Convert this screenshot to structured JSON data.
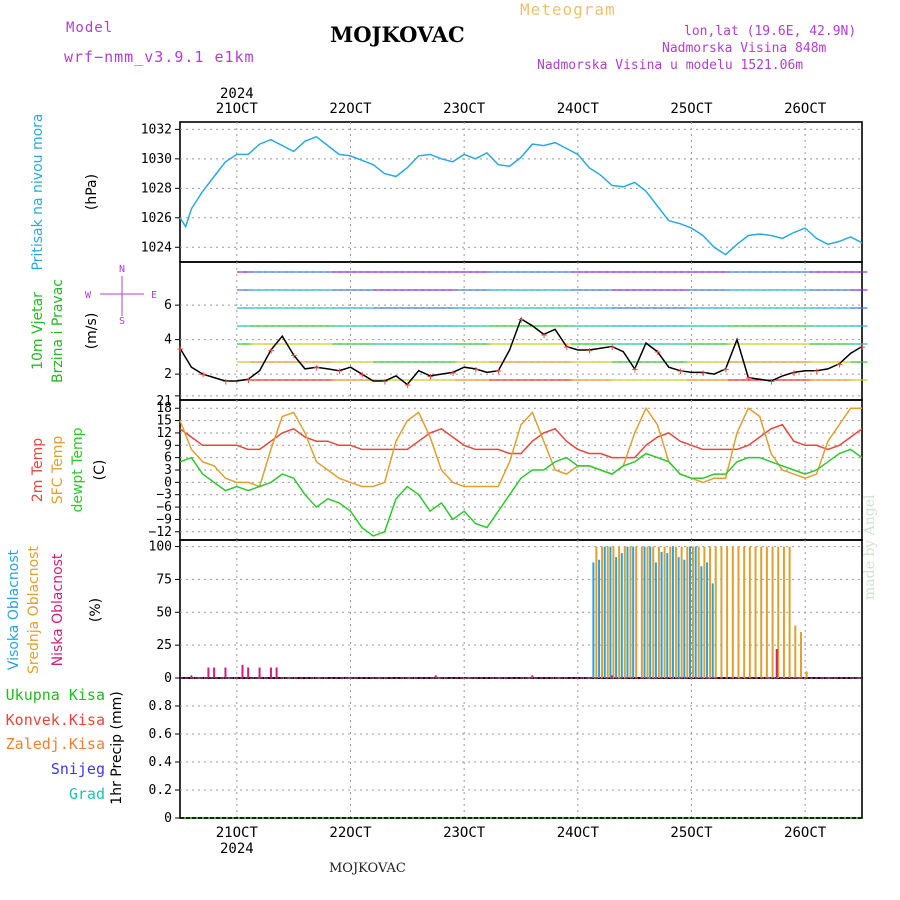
{
  "header": {
    "station": "MOJKOVAC",
    "product": "Meteogram",
    "model_label": "Model",
    "model_name": "wrf−nmm_v3.9.1  e1km",
    "lonlat": "lon,lat (19.6E, 42.9N)",
    "altitude": "Nadmorska Visina 848m",
    "model_altitude": "Nadmorska Visina u modelu 1521.06m"
  },
  "footer": {
    "station": "MOJKOVAC",
    "credit": "made by Angel"
  },
  "colors": {
    "pressure": "#29aae1",
    "temp2m": "#e8463c",
    "sfc": "#e0a030",
    "dewpt": "#2ec82e",
    "high_cloud": "#29a3e0",
    "mid_cloud": "#e0a030",
    "low_cloud": "#cc1f7a",
    "label_pressure": "#29aae1",
    "label_wind": "#22bb22",
    "label_total": "#22bb22",
    "label_conv": "#e8463c",
    "label_frozen": "#f08030",
    "label_snow": "#3a3ae0",
    "label_grad": "#22c0b0",
    "model_text": "#b040d0"
  },
  "dates": {
    "year_top": "2024",
    "year_bottom": "2024",
    "top": [
      "21OCT",
      "22OCT",
      "23OCT",
      "24OCT",
      "25OCT",
      "26OCT"
    ],
    "bottom": [
      "21OCT",
      "22OCT",
      "23OCT",
      "24OCT",
      "25OCT",
      "26OCT"
    ]
  },
  "panel_labels": {
    "pressure": [
      "Pritisak na nivou mora",
      "(hPa)"
    ],
    "wind": [
      "10m Vjetar",
      "Brzina i Pravac",
      "(m/s)"
    ],
    "wind_compass": [
      "N",
      "W",
      "E",
      "S"
    ],
    "temp": [
      "2m Temp",
      "SFC Temp",
      "dewpt Temp",
      "(C)"
    ],
    "cloud": [
      "Visoka Oblacnost",
      "Srednja Oblacnost",
      "Niska Oblacnost",
      "(%)"
    ],
    "precip": [
      "Ukupna Kisa",
      "Konvek.Kisa",
      "Zaledj.Kisa",
      "Snijeg",
      "Grad",
      "1hr Precip (mm)"
    ]
  },
  "chart_data": [
    {
      "type": "line",
      "panel": "pressure",
      "ylabel": "(hPa)",
      "ylim": [
        1023,
        1032.5
      ],
      "yticks": [
        "1024",
        "1026",
        "1028",
        "1030",
        "1032"
      ],
      "series": [
        {
          "name": "Pritisak na nivou mora",
          "x": [
            20.5,
            20.55,
            20.6,
            20.65,
            20.7,
            20.8,
            20.9,
            21.0,
            21.1,
            21.2,
            21.3,
            21.4,
            21.5,
            21.6,
            21.7,
            21.8,
            21.9,
            22.0,
            22.1,
            22.2,
            22.3,
            22.4,
            22.5,
            22.6,
            22.7,
            22.8,
            22.9,
            23.0,
            23.1,
            23.2,
            23.3,
            23.4,
            23.5,
            23.6,
            23.7,
            23.8,
            23.9,
            24.0,
            24.1,
            24.2,
            24.3,
            24.4,
            24.5,
            24.6,
            24.7,
            24.8,
            24.9,
            25.0,
            25.1,
            25.2,
            25.3,
            25.4,
            25.5,
            25.6,
            25.7,
            25.8,
            25.9,
            26.0,
            26.1,
            26.2,
            26.3,
            26.4,
            26.5
          ],
          "values": [
            1026.0,
            1025.4,
            1026.6,
            1027.2,
            1027.8,
            1028.8,
            1029.8,
            1030.3,
            1030.3,
            1031.0,
            1031.3,
            1030.9,
            1030.5,
            1031.2,
            1031.5,
            1030.9,
            1030.3,
            1030.2,
            1029.9,
            1029.6,
            1029.0,
            1028.8,
            1029.4,
            1030.2,
            1030.3,
            1030.0,
            1029.8,
            1030.3,
            1030.0,
            1030.4,
            1029.6,
            1029.5,
            1030.1,
            1031.0,
            1030.9,
            1031.1,
            1030.7,
            1030.3,
            1029.4,
            1028.9,
            1028.2,
            1028.1,
            1028.4,
            1027.8,
            1026.8,
            1025.8,
            1025.6,
            1025.3,
            1024.8,
            1024.0,
            1023.5,
            1024.2,
            1024.8,
            1024.9,
            1024.8,
            1024.6,
            1025.0,
            1025.3,
            1024.6,
            1024.2,
            1024.4,
            1024.7,
            1024.3
          ]
        }
      ]
    },
    {
      "type": "line",
      "panel": "wind",
      "ylabel": "(m/s)",
      "ylim": [
        0.5,
        8.5
      ],
      "yticks": [
        "2",
        "4",
        "6"
      ],
      "series": [
        {
          "name": "10m Vjetar brzina",
          "x": [
            20.5,
            20.6,
            20.7,
            20.8,
            20.9,
            21.0,
            21.1,
            21.2,
            21.3,
            21.4,
            21.5,
            21.6,
            21.7,
            21.8,
            21.9,
            22.0,
            22.1,
            22.2,
            22.3,
            22.4,
            22.5,
            22.6,
            22.7,
            22.8,
            22.9,
            23.0,
            23.1,
            23.2,
            23.3,
            23.4,
            23.5,
            23.6,
            23.7,
            23.8,
            23.9,
            24.0,
            24.1,
            24.2,
            24.3,
            24.4,
            24.5,
            24.6,
            24.7,
            24.8,
            24.9,
            25.0,
            25.1,
            25.2,
            25.3,
            25.4,
            25.5,
            25.6,
            25.7,
            25.8,
            25.9,
            26.0,
            26.1,
            26.2,
            26.3,
            26.4,
            26.5
          ],
          "values": [
            3.5,
            2.4,
            2.0,
            1.8,
            1.6,
            1.6,
            1.7,
            2.2,
            3.4,
            4.2,
            3.1,
            2.3,
            2.4,
            2.3,
            2.2,
            2.4,
            2.0,
            1.6,
            1.6,
            1.9,
            1.4,
            2.2,
            1.9,
            2.0,
            2.1,
            2.4,
            2.3,
            2.1,
            2.2,
            3.4,
            5.2,
            4.8,
            4.3,
            4.6,
            3.6,
            3.4,
            3.4,
            3.5,
            3.6,
            3.3,
            2.3,
            3.8,
            3.3,
            2.4,
            2.2,
            2.1,
            2.1,
            2.0,
            2.3,
            4.0,
            1.8,
            1.7,
            1.6,
            1.9,
            2.1,
            2.2,
            2.2,
            2.3,
            2.6,
            3.2,
            3.6
          ]
        }
      ]
    },
    {
      "type": "line",
      "panel": "temperature",
      "ylabel": "(C)",
      "ylim": [
        -14,
        20
      ],
      "yticks": [
        "21",
        "18",
        "15",
        "12",
        "9",
        "6",
        "3",
        "0",
        "−3",
        "−6",
        "−9",
        "−12"
      ],
      "x": [
        20.5,
        20.6,
        20.7,
        20.8,
        20.9,
        21.0,
        21.1,
        21.2,
        21.3,
        21.4,
        21.5,
        21.6,
        21.7,
        21.8,
        21.9,
        22.0,
        22.1,
        22.2,
        22.3,
        22.4,
        22.5,
        22.6,
        22.7,
        22.8,
        22.9,
        23.0,
        23.1,
        23.2,
        23.3,
        23.4,
        23.5,
        23.6,
        23.7,
        23.8,
        23.9,
        24.0,
        24.1,
        24.2,
        24.3,
        24.4,
        24.5,
        24.6,
        24.7,
        24.8,
        24.9,
        25.0,
        25.1,
        25.2,
        25.3,
        25.4,
        25.5,
        25.6,
        25.7,
        25.8,
        25.9,
        26.0,
        26.1,
        26.2,
        26.3,
        26.4,
        26.5
      ],
      "series": [
        {
          "name": "2m Temp",
          "values": [
            13,
            11,
            9,
            9,
            9,
            9,
            8,
            8,
            10,
            12,
            13,
            11,
            10,
            10,
            9,
            9,
            8,
            8,
            8,
            8,
            8,
            10,
            12,
            13,
            11,
            9,
            8,
            8,
            8,
            7,
            7,
            10,
            12,
            13,
            10,
            8,
            7,
            7,
            6,
            6,
            6,
            9,
            11,
            12,
            10,
            9,
            8,
            8,
            8,
            8,
            9,
            11,
            13,
            14,
            10,
            9,
            9,
            8,
            9,
            11,
            13
          ]
        },
        {
          "name": "SFC Temp",
          "values": [
            15,
            8,
            5,
            4,
            1,
            0,
            0,
            -1,
            8,
            16,
            17,
            12,
            5,
            3,
            1,
            0,
            -1,
            -1,
            0,
            10,
            15,
            17,
            11,
            3,
            0,
            -1,
            -1,
            -1,
            -1,
            5,
            14,
            17,
            10,
            3,
            2,
            4,
            4,
            3,
            2,
            4,
            12,
            18,
            14,
            5,
            2,
            1,
            0,
            1,
            1,
            12,
            18,
            16,
            7,
            3,
            2,
            1,
            2,
            10,
            14,
            18,
            18
          ]
        },
        {
          "name": "dewpt Temp",
          "values": [
            5,
            6,
            2,
            0,
            -2,
            -1,
            -2,
            -1,
            0,
            2,
            1,
            -3,
            -6,
            -4,
            -5,
            -7,
            -11,
            -13,
            -12,
            -4,
            -1,
            -3,
            -7,
            -5,
            -9,
            -7,
            -10,
            -11,
            -7,
            -3,
            1,
            3,
            3,
            5,
            6,
            4,
            4,
            3,
            2,
            4,
            5,
            7,
            6,
            5,
            2,
            1,
            1,
            2,
            2,
            5,
            6,
            6,
            5,
            4,
            3,
            2,
            3,
            5,
            7,
            8,
            6
          ]
        }
      ]
    },
    {
      "type": "bar",
      "panel": "cloud",
      "ylabel": "(%)",
      "ylim": [
        0,
        105
      ],
      "yticks": [
        "100",
        "75",
        "50",
        "25",
        "0"
      ],
      "series": [
        {
          "name": "Visoka Oblacnost",
          "x": [
            24.15,
            24.2,
            24.25,
            24.3,
            24.35,
            24.4,
            24.45,
            24.5,
            24.6,
            24.65,
            24.7,
            24.75,
            24.8,
            24.85,
            24.9,
            24.95,
            25.0,
            25.05,
            25.1,
            25.15,
            25.2
          ],
          "values": [
            88,
            90,
            100,
            100,
            92,
            95,
            100,
            100,
            100,
            100,
            88,
            96,
            95,
            100,
            92,
            90,
            100,
            100,
            85,
            88,
            72
          ]
        },
        {
          "name": "Srednja Oblacnost",
          "x": [
            24.15,
            24.2,
            24.25,
            24.3,
            24.35,
            24.4,
            24.45,
            24.5,
            24.55,
            24.6,
            24.65,
            24.7,
            24.75,
            24.8,
            24.85,
            24.9,
            24.95,
            25.0,
            25.05,
            25.1,
            25.15,
            25.2,
            25.25,
            25.3,
            25.35,
            25.4,
            25.45,
            25.5,
            25.55,
            25.6,
            25.65,
            25.7,
            25.75,
            25.8,
            25.85,
            25.9,
            25.95,
            26.0
          ],
          "values": [
            100,
            100,
            100,
            100,
            100,
            100,
            100,
            100,
            100,
            100,
            100,
            100,
            100,
            100,
            100,
            100,
            100,
            100,
            100,
            100,
            100,
            100,
            100,
            100,
            100,
            100,
            100,
            100,
            100,
            100,
            100,
            100,
            100,
            100,
            100,
            40,
            35,
            5
          ]
        },
        {
          "name": "Niska Oblacnost",
          "x": [
            20.6,
            20.75,
            20.8,
            20.9,
            21.05,
            21.1,
            21.2,
            21.3,
            21.35,
            22.75,
            23.6,
            24.3,
            25.75
          ],
          "values": [
            2,
            8,
            8,
            8,
            10,
            8,
            8,
            8,
            8,
            2,
            2,
            2,
            22
          ]
        }
      ]
    },
    {
      "type": "line",
      "panel": "precip",
      "ylabel": "1hr Precip (mm)",
      "ylim": [
        0,
        1.0
      ],
      "yticks": [
        "0.8",
        "0.6",
        "0.4",
        "0.2",
        "0"
      ],
      "series": [
        {
          "name": "Ukupna Kisa",
          "x": [
            20.5,
            26.5
          ],
          "values": [
            0,
            0
          ]
        }
      ]
    }
  ]
}
